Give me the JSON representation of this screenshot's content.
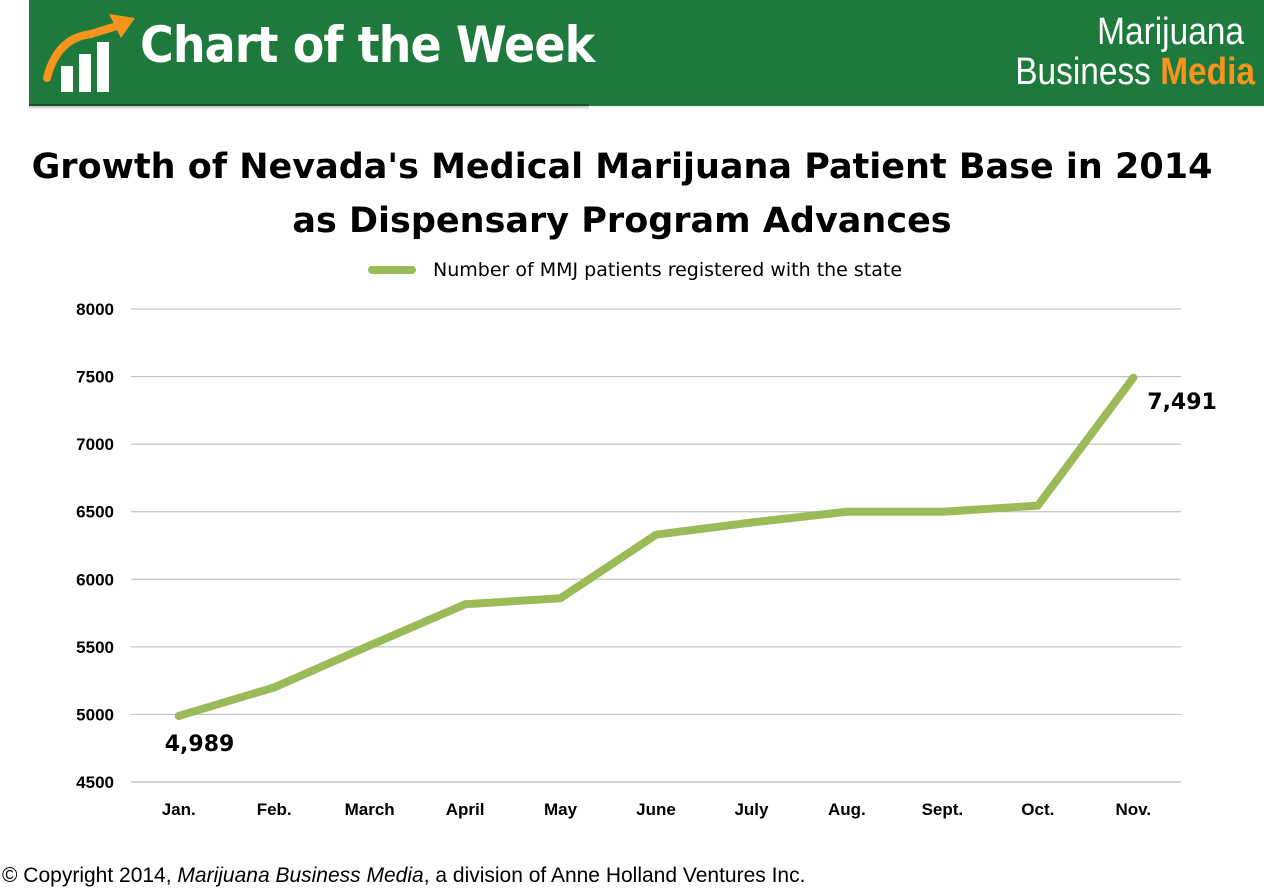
{
  "header": {
    "title": "Chart of the Week",
    "brand_line1": "Marijuana",
    "brand_line2": "Business",
    "brand_accent": "Media",
    "logo_icon": "growth-chart-icon",
    "background_color": "#1e7a3c",
    "accent_color": "#f7941d"
  },
  "chart_data": {
    "type": "line",
    "title_line1": "Growth of Nevada's Medical Marijuana Patient Base in 2014",
    "title_line2": "as Dispensary Program Advances",
    "xlabel": "",
    "ylabel": "",
    "categories": [
      "Jan.",
      "Feb.",
      "March",
      "April",
      "May",
      "June",
      "July",
      "Aug.",
      "Sept.",
      "Oct.",
      "Nov."
    ],
    "series": [
      {
        "name": "Number of MMJ patients registered with the state",
        "color": "#9bbb59",
        "values": [
          4989,
          5200,
          5510,
          5815,
          5860,
          6330,
          6420,
          6500,
          6500,
          6545,
          7491
        ]
      }
    ],
    "data_labels": [
      {
        "index": 0,
        "text": "4,989"
      },
      {
        "index": 10,
        "text": "7,491"
      }
    ],
    "ylim": [
      4500,
      8000
    ],
    "yticks": [
      "4500",
      "5000",
      "5500",
      "6000",
      "6500",
      "7000",
      "7500",
      "8000"
    ],
    "grid": true,
    "legend_position": "top"
  },
  "footer": {
    "copyright_prefix": "© Copyright 2014, ",
    "publication": "Marijuana Business Media",
    "copyright_suffix": ", a division of Anne Holland Ventures Inc."
  }
}
